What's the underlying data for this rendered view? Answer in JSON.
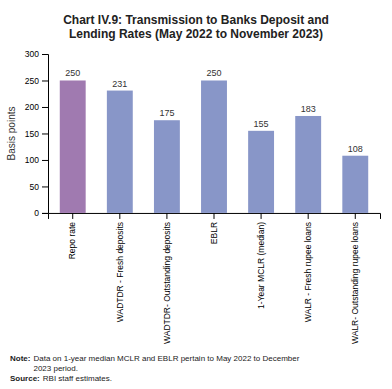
{
  "chart_data": {
    "type": "bar",
    "title": "Chart IV.9: Transmission to Banks Deposit and\nLending Rates (May 2022 to November 2023)",
    "categories": [
      "Repo rate",
      "WADTDR - Fresh deposits",
      "WADTDR- Outstanding deposits",
      "EBLR",
      "1-Year MCLR (median)",
      "WALR - Fresh rupee loans",
      "WALR- Outstanding rupee loans"
    ],
    "values": [
      250,
      231,
      175,
      250,
      155,
      183,
      108
    ],
    "colors": [
      "#a07ab0",
      "#8896c8",
      "#8896c8",
      "#8896c8",
      "#8896c8",
      "#8896c8",
      "#8896c8"
    ],
    "ylabel": "Basis points",
    "ylim": [
      0,
      300
    ],
    "yticks": [
      0,
      50,
      100,
      150,
      200,
      250,
      300
    ],
    "data_labels": true,
    "grid": false,
    "annotations": [
      {
        "prefix": "Note:",
        "text": " Data on 1-year median MCLR and EBLR pertain to May 2022 to December\n2023 period."
      },
      {
        "prefix": "Source:",
        "text": " RBI staff estimates."
      }
    ]
  }
}
